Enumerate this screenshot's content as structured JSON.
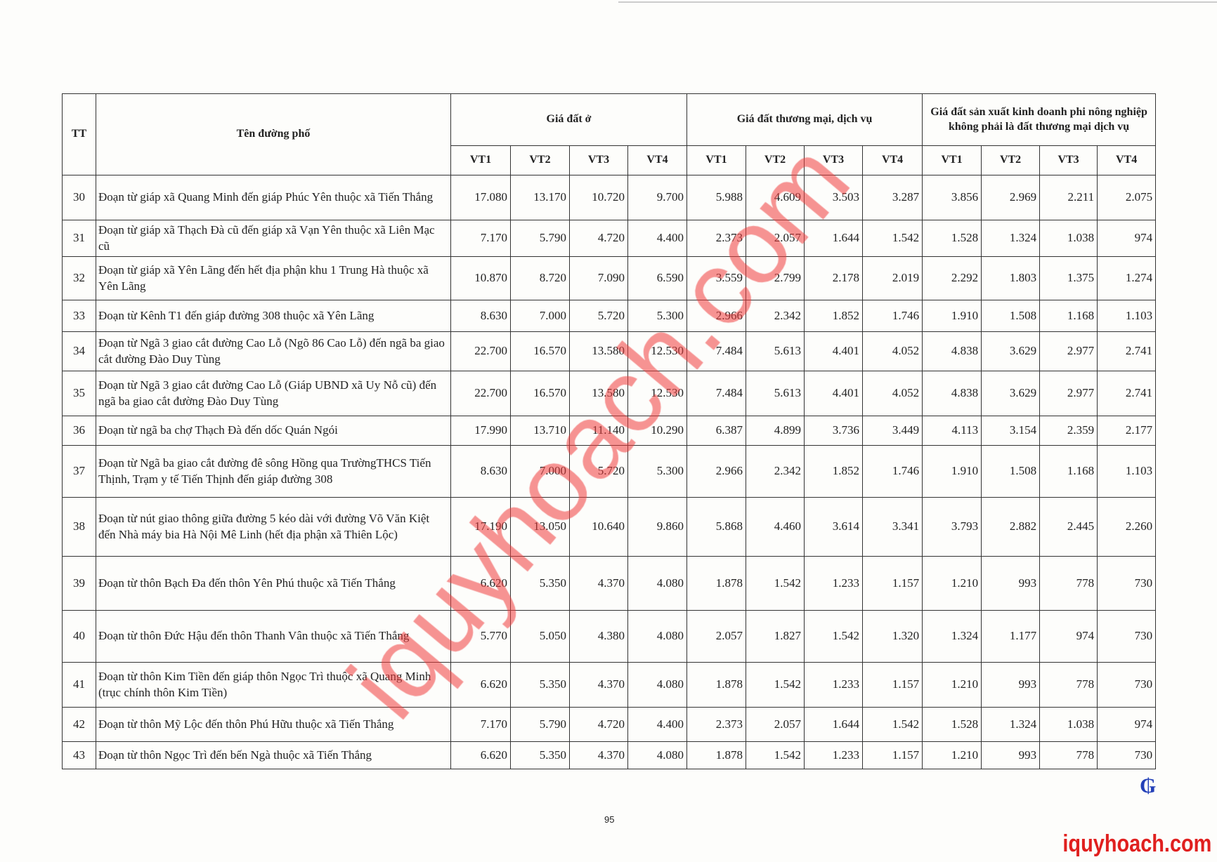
{
  "header": {
    "tt": "TT",
    "name": "Tên đường phố",
    "groups": [
      "Giá đất ở",
      "Giá đất thương mại, dịch vụ",
      "Giá đất sản xuất kinh doanh phi nông nghiệp không phải là đất thương mại dịch vụ"
    ],
    "sub": [
      "VT1",
      "VT2",
      "VT3",
      "VT4"
    ]
  },
  "rows": [
    {
      "tt": "30",
      "name": "Đoạn từ giáp xã Quang Minh đến giáp Phúc Yên thuộc xã Tiến Thắng",
      "v": [
        "17.080",
        "13.170",
        "10.720",
        "9.700",
        "5.988",
        "4.609",
        "3.503",
        "3.287",
        "3.856",
        "2.969",
        "2.211",
        "2.075"
      ]
    },
    {
      "tt": "31",
      "name": "Đoạn từ giáp xã Thạch Đà cũ đến giáp xã Vạn Yên thuộc xã Liên Mạc cũ",
      "v": [
        "7.170",
        "5.790",
        "4.720",
        "4.400",
        "2.373",
        "2.057",
        "1.644",
        "1.542",
        "1.528",
        "1.324",
        "1.038",
        "974"
      ]
    },
    {
      "tt": "32",
      "name": "Đoạn từ giáp xã Yên Lãng đến hết địa phận khu 1 Trung Hà thuộc xã Yên Lãng",
      "v": [
        "10.870",
        "8.720",
        "7.090",
        "6.590",
        "3.559",
        "2.799",
        "2.178",
        "2.019",
        "2.292",
        "1.803",
        "1.375",
        "1.274"
      ]
    },
    {
      "tt": "33",
      "name": "Đoạn từ Kênh T1 đến giáp đường 308 thuộc xã Yên Lãng",
      "v": [
        "8.630",
        "7.000",
        "5.720",
        "5.300",
        "2.966",
        "2.342",
        "1.852",
        "1.746",
        "1.910",
        "1.508",
        "1.168",
        "1.103"
      ]
    },
    {
      "tt": "34",
      "name": "Đoạn từ Ngã 3 giao cắt đường Cao Lỗ (Ngõ 86 Cao Lỗ) đến ngã ba giao cắt đường Đào Duy Tùng",
      "v": [
        "22.700",
        "16.570",
        "13.580",
        "12.530",
        "7.484",
        "5.613",
        "4.401",
        "4.052",
        "4.838",
        "3.629",
        "2.977",
        "2.741"
      ]
    },
    {
      "tt": "35",
      "name": "Đoạn từ Ngã 3 giao cắt đường Cao Lỗ (Giáp UBND xã Uy Nỗ cũ) đến ngã ba giao cắt đường Đào Duy Tùng",
      "v": [
        "22.700",
        "16.570",
        "13.580",
        "12.530",
        "7.484",
        "5.613",
        "4.401",
        "4.052",
        "4.838",
        "3.629",
        "2.977",
        "2.741"
      ]
    },
    {
      "tt": "36",
      "name": "Đoạn từ ngã ba chợ Thạch Đà đến dốc Quán Ngói",
      "v": [
        "17.990",
        "13.710",
        "11.140",
        "10.290",
        "6.387",
        "4.899",
        "3.736",
        "3.449",
        "4.113",
        "3.154",
        "2.359",
        "2.177"
      ]
    },
    {
      "tt": "37",
      "name": "Đoạn từ Ngã ba giao cắt đường đê sông Hồng qua TrườngTHCS Tiến Thịnh, Trạm y tế Tiến Thịnh đến giáp đường 308",
      "v": [
        "8.630",
        "7.000",
        "5.720",
        "5.300",
        "2.966",
        "2.342",
        "1.852",
        "1.746",
        "1.910",
        "1.508",
        "1.168",
        "1.103"
      ]
    },
    {
      "tt": "38",
      "name": "Đoạn từ nút giao thông giữa đường 5 kéo dài với đường Võ Văn Kiệt đến Nhà máy bia Hà Nội Mê Linh (hết địa phận xã Thiên Lộc)",
      "v": [
        "17.190",
        "13.050",
        "10.640",
        "9.860",
        "5.868",
        "4.460",
        "3.614",
        "3.341",
        "3.793",
        "2.882",
        "2.445",
        "2.260"
      ]
    },
    {
      "tt": "39",
      "name": "Đoạn từ thôn Bạch Đa đến thôn Yên Phú thuộc xã Tiến Thắng",
      "v": [
        "6.620",
        "5.350",
        "4.370",
        "4.080",
        "1.878",
        "1.542",
        "1.233",
        "1.157",
        "1.210",
        "993",
        "778",
        "730"
      ]
    },
    {
      "tt": "40",
      "name": "Đoạn từ thôn Đức Hậu đến thôn Thanh Vân thuộc xã Tiến Thắng",
      "v": [
        "5.770",
        "5.050",
        "4.380",
        "4.080",
        "2.057",
        "1.827",
        "1.542",
        "1.320",
        "1.324",
        "1.177",
        "974",
        "730"
      ]
    },
    {
      "tt": "41",
      "name": "Đoạn từ thôn Kim Tiền đến giáp thôn Ngọc Trì thuộc xã Quang Minh (trục chính thôn Kim Tiền)",
      "v": [
        "6.620",
        "5.350",
        "4.370",
        "4.080",
        "1.878",
        "1.542",
        "1.233",
        "1.157",
        "1.210",
        "993",
        "778",
        "730"
      ]
    },
    {
      "tt": "42",
      "name": "Đoạn từ thôn Mỹ Lộc đến thôn Phú Hữu thuộc xã Tiến Thắng",
      "v": [
        "7.170",
        "5.790",
        "4.720",
        "4.400",
        "2.373",
        "2.057",
        "1.644",
        "1.542",
        "1.528",
        "1.324",
        "1.038",
        "974"
      ]
    },
    {
      "tt": "43",
      "name": "Đoạn từ thôn Ngọc Trì đến bến Ngà thuộc xã Tiến Thắng",
      "v": [
        "6.620",
        "5.350",
        "4.370",
        "4.080",
        "1.878",
        "1.542",
        "1.233",
        "1.157",
        "1.210",
        "993",
        "778",
        "730"
      ]
    }
  ],
  "page_number": "95",
  "watermark": "iquyhoach.com",
  "brand_logo": "iquyhoach.com",
  "colors": {
    "watermark": "#f03c3c",
    "brand": "#e0201f",
    "signature": "#2340b8"
  }
}
